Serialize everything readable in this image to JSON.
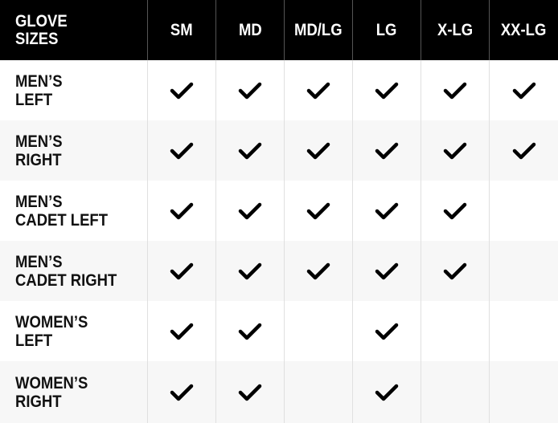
{
  "table": {
    "header": [
      "GLOVE\nSIZES",
      "SM",
      "MD",
      "MD/LG",
      "LG",
      "X-LG",
      "XX-LG"
    ],
    "rows": [
      {
        "label": "MEN’S\nLEFT",
        "available": [
          true,
          true,
          true,
          true,
          true,
          true
        ]
      },
      {
        "label": "MEN’S\nRIGHT",
        "available": [
          true,
          true,
          true,
          true,
          true,
          true
        ]
      },
      {
        "label": "MEN’S\nCADET LEFT",
        "available": [
          true,
          true,
          true,
          true,
          true,
          false
        ]
      },
      {
        "label": "MEN’S\nCADET RIGHT",
        "available": [
          true,
          true,
          true,
          true,
          true,
          false
        ]
      },
      {
        "label": "WOMEN’S\nLEFT",
        "available": [
          true,
          true,
          false,
          true,
          false,
          false
        ]
      },
      {
        "label": "WOMEN’S\nRIGHT",
        "available": [
          true,
          true,
          false,
          true,
          false,
          false
        ]
      }
    ]
  }
}
